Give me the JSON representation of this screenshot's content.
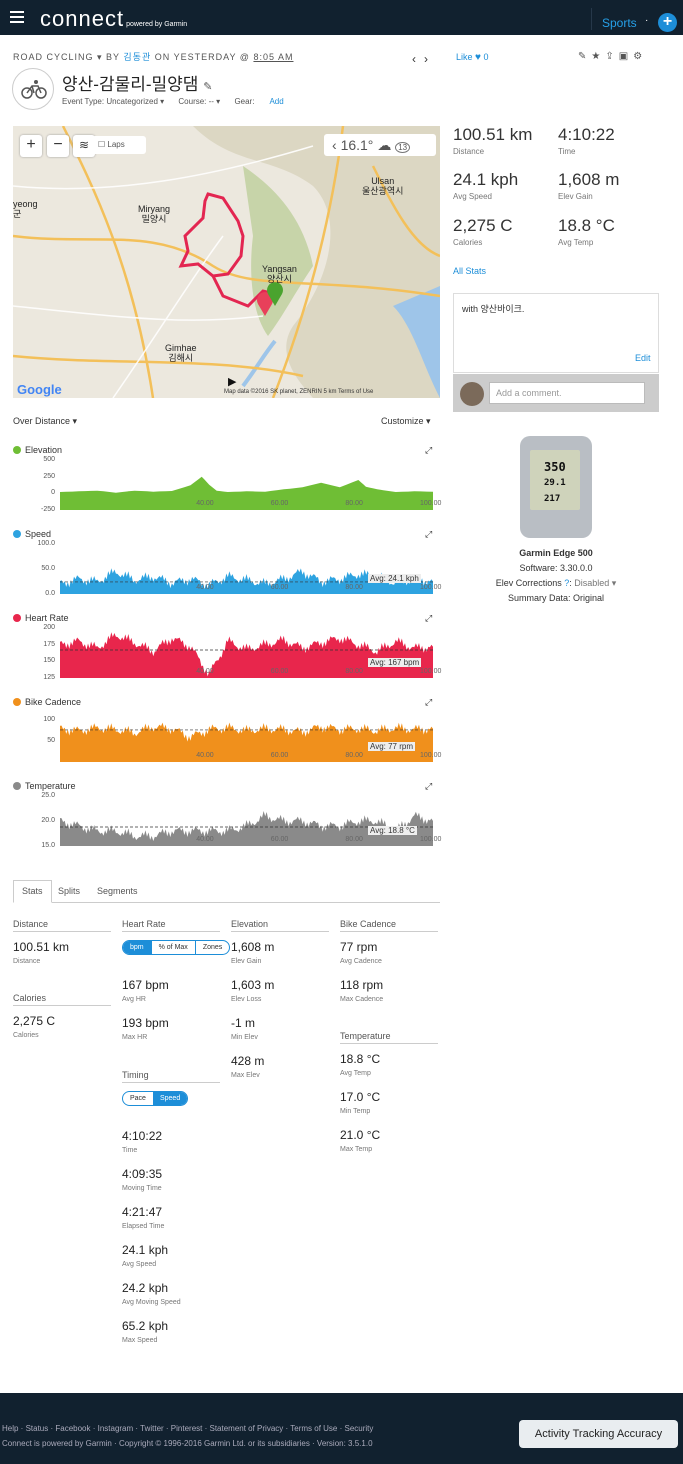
{
  "topbar": {
    "brand": "connect",
    "brand_sub": "powered by Garmin",
    "sports": "Sports",
    "dots": "·",
    "plus": "+"
  },
  "activity": {
    "type": "ROAD CYCLING",
    "by": "BY",
    "user": "김동관",
    "on": "ON YESTERDAY @",
    "time": "8:05 AM",
    "title": "양산-감물리-밀양댐",
    "event_type": "Event Type: Uncategorized ▾",
    "course": "Course: -- ▾",
    "gear_label": "Gear:",
    "gear_add": "Add",
    "like": "Like",
    "like_count": "0"
  },
  "map": {
    "laps": "Laps",
    "temp": "16.1°",
    "wind": "13",
    "labels": {
      "yeong": "yeong\n군",
      "miryang": "Miryang\n밀양시",
      "ulsan": "Ulsan\n울산광역시",
      "yangsan": "Yangsan\n양산시",
      "gimhae": "Gimhae\n김해시"
    },
    "google": "Google",
    "footer": "Map data ©2016 SK planet, ZENRIN    5 km        Terms of Use"
  },
  "summary": [
    {
      "value": "100.51 km",
      "label": "Distance"
    },
    {
      "value": "4:10:22",
      "label": "Time"
    },
    {
      "value": "24.1 kph",
      "label": "Avg Speed"
    },
    {
      "value": "1,608 m",
      "label": "Elev Gain"
    },
    {
      "value": "2,275 C",
      "label": "Calories"
    },
    {
      "value": "18.8 °C",
      "label": "Avg Temp"
    }
  ],
  "all_stats": "All Stats",
  "notes": {
    "text": "with 양산바이크.",
    "edit": "Edit",
    "comment_placeholder": "Add a comment."
  },
  "device": {
    "name": "Garmin Edge 500",
    "software": "Software: 3.30.0.0",
    "elev": "Elev Corrections",
    "elev_val": "Disabled ▾",
    "summary": "Summary Data: Original",
    "screen": [
      "350",
      "29.1",
      "217"
    ]
  },
  "charts_ctl": {
    "over": "Over Distance ▾",
    "customize": "Customize ▾"
  },
  "chart_data": [
    {
      "type": "area",
      "title": "Elevation",
      "color": "#6fbe35",
      "yticks": [
        "500",
        "250",
        "0",
        "-250"
      ],
      "ylim": [
        -250,
        500
      ],
      "xticks": [
        "40.00",
        "60.00",
        "80.00",
        "100.00"
      ],
      "x": [
        0,
        5,
        10,
        15,
        20,
        25,
        30,
        35,
        38,
        40,
        42,
        45,
        50,
        55,
        60,
        65,
        70,
        75,
        80,
        82,
        85,
        90,
        95,
        100
      ],
      "y": [
        20,
        30,
        40,
        10,
        40,
        25,
        35,
        120,
        250,
        130,
        40,
        20,
        30,
        25,
        60,
        90,
        160,
        90,
        200,
        100,
        60,
        20,
        30,
        25
      ]
    },
    {
      "type": "area",
      "title": "Speed",
      "color": "#2ea3e0",
      "yticks": [
        "100.0",
        "50.0",
        "0.0"
      ],
      "ylim": [
        0,
        100
      ],
      "xticks": [
        "40.00",
        "60.00",
        "80.00",
        "100.00"
      ],
      "avg": "Avg: 24.1 kph",
      "x": [
        0,
        5,
        10,
        15,
        20,
        25,
        30,
        35,
        40,
        45,
        50,
        55,
        60,
        65,
        70,
        75,
        80,
        85,
        90,
        95,
        100
      ],
      "y": [
        20,
        30,
        25,
        45,
        28,
        35,
        22,
        30,
        18,
        35,
        28,
        20,
        30,
        45,
        25,
        30,
        40,
        35,
        22,
        30,
        25
      ]
    },
    {
      "type": "area",
      "title": "Heart Rate",
      "color": "#e8264c",
      "yticks": [
        "200",
        "175",
        "150",
        "125"
      ],
      "ylim": [
        125,
        200
      ],
      "xticks": [
        "40.00",
        "60.00",
        "80.00",
        "100.00"
      ],
      "avg": "Avg: 167 bpm",
      "x": [
        0,
        5,
        10,
        15,
        20,
        25,
        30,
        35,
        40,
        45,
        50,
        55,
        60,
        65,
        70,
        75,
        80,
        85,
        90,
        95,
        100
      ],
      "y": [
        175,
        180,
        170,
        190,
        178,
        165,
        185,
        172,
        130,
        180,
        168,
        175,
        182,
        170,
        178,
        185,
        175,
        165,
        180,
        170,
        172
      ]
    },
    {
      "type": "area",
      "title": "Bike Cadence",
      "color": "#f0901c",
      "yticks": [
        "100",
        "50"
      ],
      "ylim": [
        0,
        120
      ],
      "xticks": [
        "40.00",
        "60.00",
        "80.00",
        "100.00"
      ],
      "avg": "Avg: 77 rpm",
      "x": [
        0,
        5,
        10,
        15,
        20,
        25,
        30,
        35,
        40,
        45,
        50,
        55,
        60,
        65,
        70,
        75,
        80,
        85,
        90,
        95,
        100
      ],
      "y": [
        80,
        75,
        82,
        78,
        70,
        85,
        80,
        60,
        78,
        82,
        75,
        80,
        78,
        72,
        85,
        78,
        80,
        75,
        82,
        78,
        80
      ]
    },
    {
      "type": "area",
      "title": "Temperature",
      "color": "#8a8a8a",
      "yticks": [
        "25.0",
        "20.0",
        "15.0"
      ],
      "ylim": [
        15,
        25
      ],
      "xticks": [
        "40.00",
        "60.00",
        "80.00",
        "100.00"
      ],
      "avg": "Avg: 18.8 °C",
      "x": [
        0,
        5,
        10,
        15,
        20,
        25,
        30,
        35,
        40,
        45,
        50,
        55,
        60,
        65,
        70,
        75,
        80,
        85,
        90,
        95,
        100
      ],
      "y": [
        20,
        19,
        18,
        18,
        17,
        17,
        18,
        18,
        18,
        18,
        19,
        21,
        20,
        20,
        19,
        19,
        20,
        20,
        18,
        21,
        20
      ]
    }
  ],
  "tabs": [
    "Stats",
    "Splits",
    "Segments"
  ],
  "stats": {
    "distance_h": "Distance",
    "distance": "100.51 km",
    "distance_l": "Distance",
    "calories_h": "Calories",
    "calories": "2,275 C",
    "calories_l": "Calories",
    "hr_h": "Heart Rate",
    "hr_seg": [
      "bpm",
      "% of Max",
      "Zones"
    ],
    "avg_hr": "167 bpm",
    "avg_hr_l": "Avg HR",
    "max_hr": "193 bpm",
    "max_hr_l": "Max HR",
    "timing_h": "Timing",
    "timing_seg": [
      "Pace",
      "Speed"
    ],
    "timing": [
      {
        "v": "4:10:22",
        "l": "Time"
      },
      {
        "v": "4:09:35",
        "l": "Moving Time"
      },
      {
        "v": "4:21:47",
        "l": "Elapsed Time"
      },
      {
        "v": "24.1 kph",
        "l": "Avg Speed"
      },
      {
        "v": "24.2 kph",
        "l": "Avg Moving Speed"
      },
      {
        "v": "65.2 kph",
        "l": "Max Speed"
      }
    ],
    "elev_h": "Elevation",
    "elev": [
      {
        "v": "1,608 m",
        "l": "Elev Gain"
      },
      {
        "v": "1,603 m",
        "l": "Elev Loss"
      },
      {
        "v": "-1 m",
        "l": "Min Elev"
      },
      {
        "v": "428 m",
        "l": "Max Elev"
      }
    ],
    "cad_h": "Bike Cadence",
    "cad": [
      {
        "v": "77 rpm",
        "l": "Avg Cadence"
      },
      {
        "v": "118 rpm",
        "l": "Max Cadence"
      }
    ],
    "temp_h": "Temperature",
    "temp": [
      {
        "v": "18.8 °C",
        "l": "Avg Temp"
      },
      {
        "v": "17.0 °C",
        "l": "Min Temp"
      },
      {
        "v": "21.0 °C",
        "l": "Max Temp"
      }
    ]
  },
  "footer": {
    "links": "Help · Status · Facebook · Instagram · Twitter · Pinterest · Statement of Privacy · Terms of Use · Security",
    "copy": "Connect is powered by Garmin · Copyright © 1996-2016 Garmin Ltd. or its subsidiaries · Version: 3.5.1.0",
    "accuracy": "Activity Tracking Accuracy"
  }
}
